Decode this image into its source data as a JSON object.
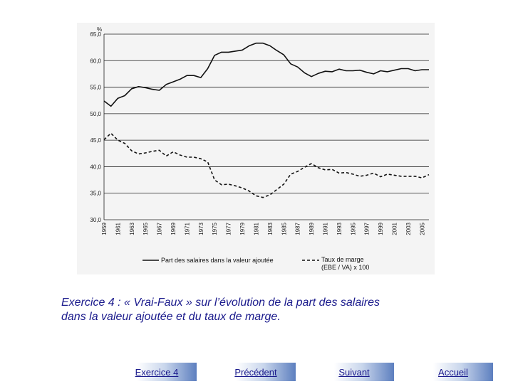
{
  "chart_data": {
    "type": "line",
    "ylabel": "%",
    "ylim": [
      30,
      65
    ],
    "yticks": [
      "30,0",
      "35,0",
      "40,0",
      "45,0",
      "50,0",
      "55,0",
      "60,0",
      "65,0"
    ],
    "xticks": [
      "1959",
      "1961",
      "1963",
      "1965",
      "1967",
      "1969",
      "1971",
      "1973",
      "1975",
      "1977",
      "1979",
      "1981",
      "1983",
      "1985",
      "1987",
      "1989",
      "1991",
      "1993",
      "1995",
      "1997",
      "1999",
      "2001",
      "2003",
      "2005"
    ],
    "x": [
      1959,
      1960,
      1961,
      1962,
      1963,
      1964,
      1965,
      1966,
      1967,
      1968,
      1969,
      1970,
      1971,
      1972,
      1973,
      1974,
      1975,
      1976,
      1977,
      1978,
      1979,
      1980,
      1981,
      1982,
      1983,
      1984,
      1985,
      1986,
      1987,
      1988,
      1989,
      1990,
      1991,
      1992,
      1993,
      1994,
      1995,
      1996,
      1997,
      1998,
      1999,
      2000,
      2001,
      2002,
      2003,
      2004,
      2005,
      2006
    ],
    "grid": true,
    "legend_position": "bottom",
    "series": [
      {
        "name": "Part des salaires  dans la valeur ajoutée",
        "style": "solid",
        "values": [
          52.4,
          51.4,
          52.9,
          53.4,
          54.7,
          55.1,
          54.9,
          54.6,
          54.4,
          55.5,
          56.0,
          56.5,
          57.2,
          57.2,
          56.8,
          58.5,
          61.0,
          61.6,
          61.6,
          61.8,
          62.0,
          62.8,
          63.3,
          63.3,
          62.8,
          61.9,
          61.1,
          59.4,
          58.8,
          57.7,
          57.0,
          57.6,
          58.0,
          57.9,
          58.4,
          58.1,
          58.1,
          58.2,
          57.8,
          57.5,
          58.1,
          57.9,
          58.2,
          58.5,
          58.5,
          58.1,
          58.3,
          58.3
        ]
      },
      {
        "name": "Taux de marge (EBE / VA) x 100",
        "legend_label_line1": "Taux de marge",
        "legend_label_line2": "(EBE / VA) x 100",
        "style": "dashed",
        "values": [
          45.1,
          46.3,
          45.0,
          44.4,
          43.0,
          42.4,
          42.6,
          42.9,
          43.1,
          42.0,
          42.8,
          42.2,
          41.8,
          41.8,
          41.5,
          40.9,
          37.5,
          36.6,
          36.7,
          36.4,
          36.0,
          35.4,
          34.5,
          34.2,
          34.7,
          35.7,
          36.7,
          38.6,
          39.1,
          39.9,
          40.6,
          39.8,
          39.4,
          39.5,
          38.8,
          38.9,
          38.6,
          38.2,
          38.4,
          38.8,
          38.1,
          38.6,
          38.4,
          38.2,
          38.2,
          38.2,
          37.9,
          38.5
        ]
      }
    ]
  },
  "caption": {
    "line1": "Exercice 4 : « Vrai-Faux » sur l’évolution de la part des salaires",
    "line2": "dans la valeur ajoutée et du taux de marge."
  },
  "nav": {
    "exercise": "Exercice 4",
    "previous": "Précédent",
    "next": "Suivant",
    "home": "Accueil"
  },
  "colors": {
    "line": "#111111",
    "caption": "#1a1a8c",
    "button_gradient_end": "#5d7fbf"
  }
}
